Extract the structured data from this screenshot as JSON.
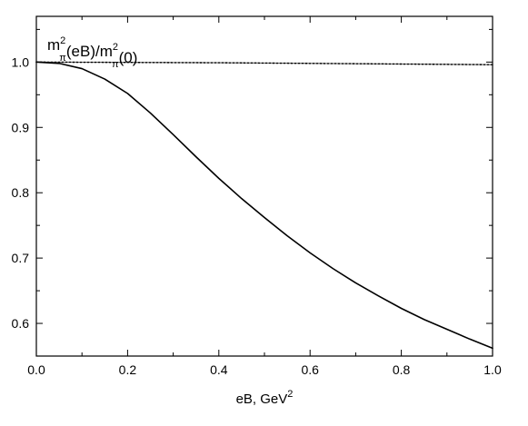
{
  "chart_data": {
    "type": "line",
    "title": "",
    "xlabel": {
      "base": "eB, GeV",
      "sup": "2"
    },
    "ylabel": "",
    "annotation": {
      "parts": [
        {
          "t": "m",
          "kind": "base"
        },
        {
          "t": "2",
          "kind": "sup"
        },
        {
          "t": "π",
          "kind": "sub"
        },
        {
          "t": "(eB)/m",
          "kind": "base"
        },
        {
          "t": "2",
          "kind": "sup"
        },
        {
          "t": "π",
          "kind": "sub"
        },
        {
          "t": "(0)",
          "kind": "base"
        }
      ]
    },
    "xlim": [
      0.0,
      1.0
    ],
    "ylim": [
      0.55,
      1.07
    ],
    "x_ticks": [
      0.0,
      0.2,
      0.4,
      0.6,
      0.8,
      1.0
    ],
    "x_tick_labels": [
      "0.0",
      "0.2",
      "0.4",
      "0.6",
      "0.8",
      "1.0"
    ],
    "y_ticks": [
      0.6,
      0.7,
      0.8,
      0.9,
      1.0
    ],
    "y_tick_labels": [
      "0.6",
      "0.7",
      "0.8",
      "0.9",
      "1.0"
    ],
    "grid": false,
    "series": [
      {
        "style": "solid",
        "color": "#000000",
        "x": [
          0.0,
          0.05,
          0.1,
          0.15,
          0.2,
          0.25,
          0.3,
          0.35,
          0.4,
          0.45,
          0.5,
          0.55,
          0.6,
          0.65,
          0.7,
          0.75,
          0.8,
          0.85,
          0.9,
          0.95,
          1.0
        ],
        "y": [
          1.0,
          0.998,
          0.99,
          0.974,
          0.952,
          0.922,
          0.889,
          0.855,
          0.822,
          0.791,
          0.762,
          0.734,
          0.708,
          0.684,
          0.662,
          0.642,
          0.623,
          0.606,
          0.591,
          0.576,
          0.562
        ]
      },
      {
        "style": "dotted",
        "color": "#000000",
        "x": [
          0.0,
          0.2,
          0.4,
          0.6,
          0.8,
          1.0
        ],
        "y": [
          1.0,
          0.9995,
          0.999,
          0.998,
          0.997,
          0.996
        ]
      }
    ]
  }
}
